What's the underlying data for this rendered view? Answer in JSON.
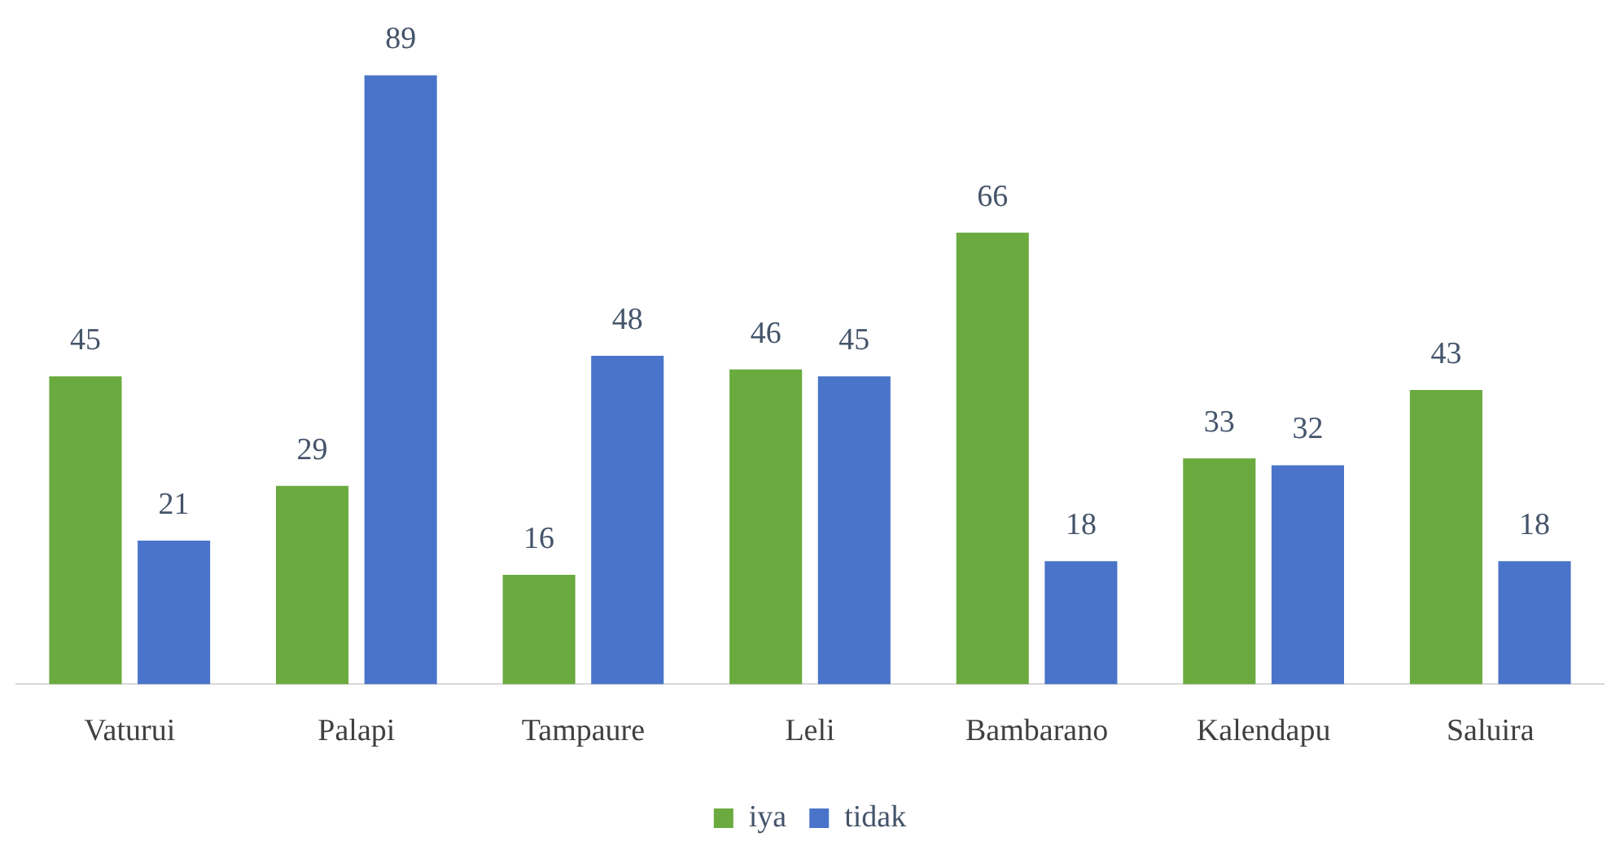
{
  "chart_data": {
    "type": "bar",
    "categories": [
      "Vaturui",
      "Palapi",
      "Tampaure",
      "Leli",
      "Bambarano",
      "Kalendapu",
      "Saluira"
    ],
    "series": [
      {
        "name": "iya",
        "color": "#6aaa3f",
        "values": [
          45,
          29,
          16,
          46,
          66,
          33,
          43
        ]
      },
      {
        "name": "tidak",
        "color": "#4a74c9",
        "values": [
          21,
          89,
          48,
          45,
          18,
          32,
          18
        ]
      }
    ],
    "tick_labels": "x",
    "grid": false,
    "legend": "bottom",
    "data_labels": true
  }
}
